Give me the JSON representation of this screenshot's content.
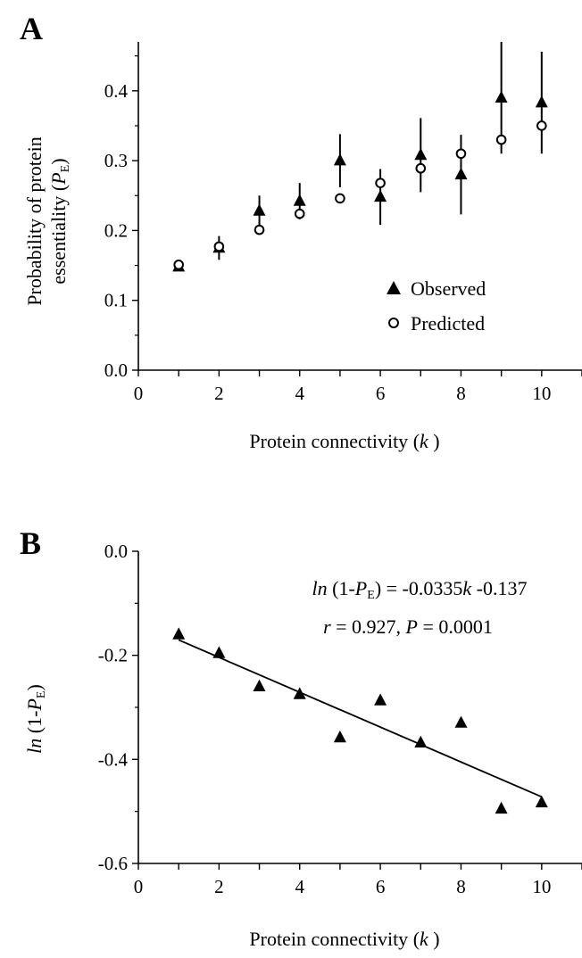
{
  "chart_data": [
    {
      "panel": "A",
      "type": "scatter",
      "xlabel": "Protein connectivity",
      "xlabel_var": "k",
      "ylabel_line1": "Probability of protein",
      "ylabel_line2": "essentiality",
      "ylabel_var": "P",
      "ylabel_sub": "E",
      "xlim": [
        0,
        11
      ],
      "ylim": [
        0,
        0.47
      ],
      "xticks": [
        0,
        2,
        4,
        6,
        8,
        10
      ],
      "yticks": [
        0.0,
        0.1,
        0.2,
        0.3,
        0.4
      ],
      "ytick_labels": [
        "0.0",
        "0.1",
        "0.2",
        "0.3",
        "0.4"
      ],
      "legend_position": "lower-right",
      "series": [
        {
          "name": "Observed",
          "marker": "filled-triangle",
          "x": [
            1,
            2,
            3,
            4,
            5,
            6,
            7,
            8,
            9,
            10
          ],
          "y": [
            0.148,
            0.175,
            0.228,
            0.242,
            0.3,
            0.248,
            0.308,
            0.28,
            0.39,
            0.383
          ],
          "error": [
            0.005,
            0.017,
            0.022,
            0.026,
            0.038,
            0.04,
            0.053,
            0.057,
            0.08,
            0.073
          ]
        },
        {
          "name": "Predicted",
          "marker": "open-circle",
          "x": [
            1,
            2,
            3,
            4,
            5,
            6,
            7,
            8,
            9,
            10
          ],
          "y": [
            0.151,
            0.177,
            0.201,
            0.224,
            0.246,
            0.268,
            0.289,
            0.31,
            0.33,
            0.35
          ]
        }
      ]
    },
    {
      "panel": "B",
      "type": "scatter",
      "xlabel": "Protein connectivity",
      "xlabel_var": "k",
      "ylabel_fn": "ln",
      "ylabel_open": " (1-",
      "ylabel_var": "P",
      "ylabel_sub": "E",
      "ylabel_close": ")",
      "xlim": [
        0,
        11
      ],
      "ylim": [
        -0.6,
        0.0
      ],
      "xticks": [
        0,
        2,
        4,
        6,
        8,
        10
      ],
      "yticks": [
        0.0,
        -0.2,
        -0.4,
        -0.6
      ],
      "ytick_labels": [
        "0.0",
        "-0.2",
        "-0.4",
        "-0.6"
      ],
      "series": [
        {
          "name": "Observed",
          "marker": "filled-triangle",
          "x": [
            1,
            2,
            3,
            4,
            5,
            6,
            7,
            8,
            9,
            10
          ],
          "y": [
            -0.16,
            -0.196,
            -0.26,
            -0.275,
            -0.358,
            -0.287,
            -0.368,
            -0.33,
            -0.495,
            -0.483
          ]
        }
      ],
      "fit_line": {
        "slope": -0.0335,
        "intercept": -0.137,
        "x_range": [
          1,
          10
        ]
      },
      "annotation": {
        "line1_fn": "ln",
        "line1_open": " (1-",
        "line1_var": "P",
        "line1_sub": "E",
        "line1_eq": ") = -0.0335",
        "line1_k": "k",
        "line1_end": " -0.137",
        "line2_r": "r",
        "line2_rval": " = 0.927,  ",
        "line2_p": "P",
        "line2_pval": " = 0.0001"
      }
    }
  ]
}
